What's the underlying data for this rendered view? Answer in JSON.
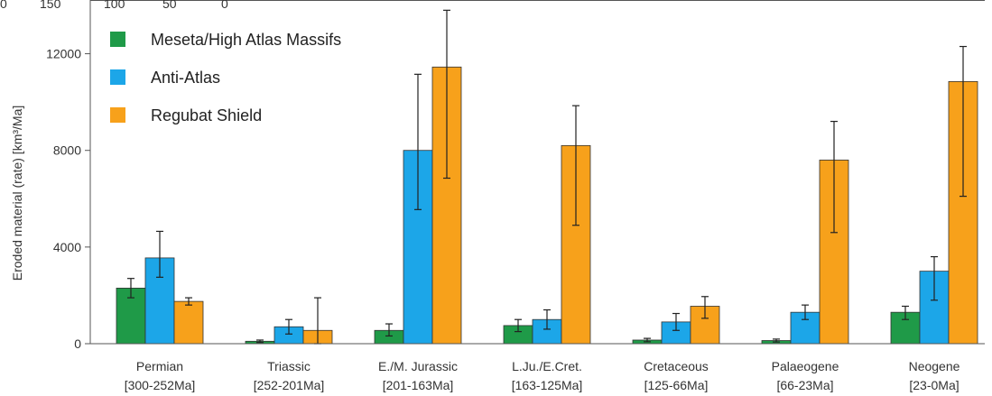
{
  "chart_data": {
    "type": "bar",
    "ylabel": "Eroded material (rate) [km³/Ma]",
    "ylim": [
      0,
      14000
    ],
    "yticks": [
      0,
      4000,
      8000,
      12000
    ],
    "top_axis_ticks": [
      "0",
      "150",
      "100",
      "50",
      "0"
    ],
    "categories": [
      [
        "Permian",
        "[300-252Ma]"
      ],
      [
        "Triassic",
        "[252-201Ma]"
      ],
      [
        "E./M. Jurassic",
        "[201-163Ma]"
      ],
      [
        "L.Ju./E.Cret.",
        "[163-125Ma]"
      ],
      [
        "Cretaceous",
        "[125-66Ma]"
      ],
      [
        "Palaeogene",
        "[66-23Ma]"
      ],
      [
        "Neogene",
        "[23-0Ma]"
      ]
    ],
    "series": [
      {
        "name": "Meseta/High Atlas Massifs",
        "color": "#1f9a48",
        "values": [
          2300,
          100,
          550,
          750,
          150,
          130,
          1300
        ],
        "errors": [
          [
            1900,
            2700
          ],
          [
            50,
            150
          ],
          [
            320,
            820
          ],
          [
            500,
            1000
          ],
          [
            80,
            220
          ],
          [
            70,
            190
          ],
          [
            1000,
            1550
          ]
        ]
      },
      {
        "name": "Anti-Atlas",
        "color": "#1ca6e8",
        "values": [
          3550,
          700,
          8000,
          1000,
          900,
          1300,
          3000
        ],
        "errors": [
          [
            2750,
            4650
          ],
          [
            400,
            1000
          ],
          [
            5550,
            11150
          ],
          [
            600,
            1400
          ],
          [
            550,
            1250
          ],
          [
            1000,
            1600
          ],
          [
            1800,
            3600
          ]
        ]
      },
      {
        "name": "Regubat Shield",
        "color": "#f7a11b",
        "values": [
          1750,
          550,
          11450,
          8200,
          1550,
          7600,
          10850
        ],
        "errors": [
          [
            1600,
            1900
          ],
          [
            0,
            1900
          ],
          [
            6850,
            13800
          ],
          [
            4900,
            9850
          ],
          [
            1050,
            1950
          ],
          [
            4600,
            9200
          ],
          [
            6100,
            12300
          ]
        ]
      }
    ],
    "legend_position": "top-left",
    "grid": false
  }
}
